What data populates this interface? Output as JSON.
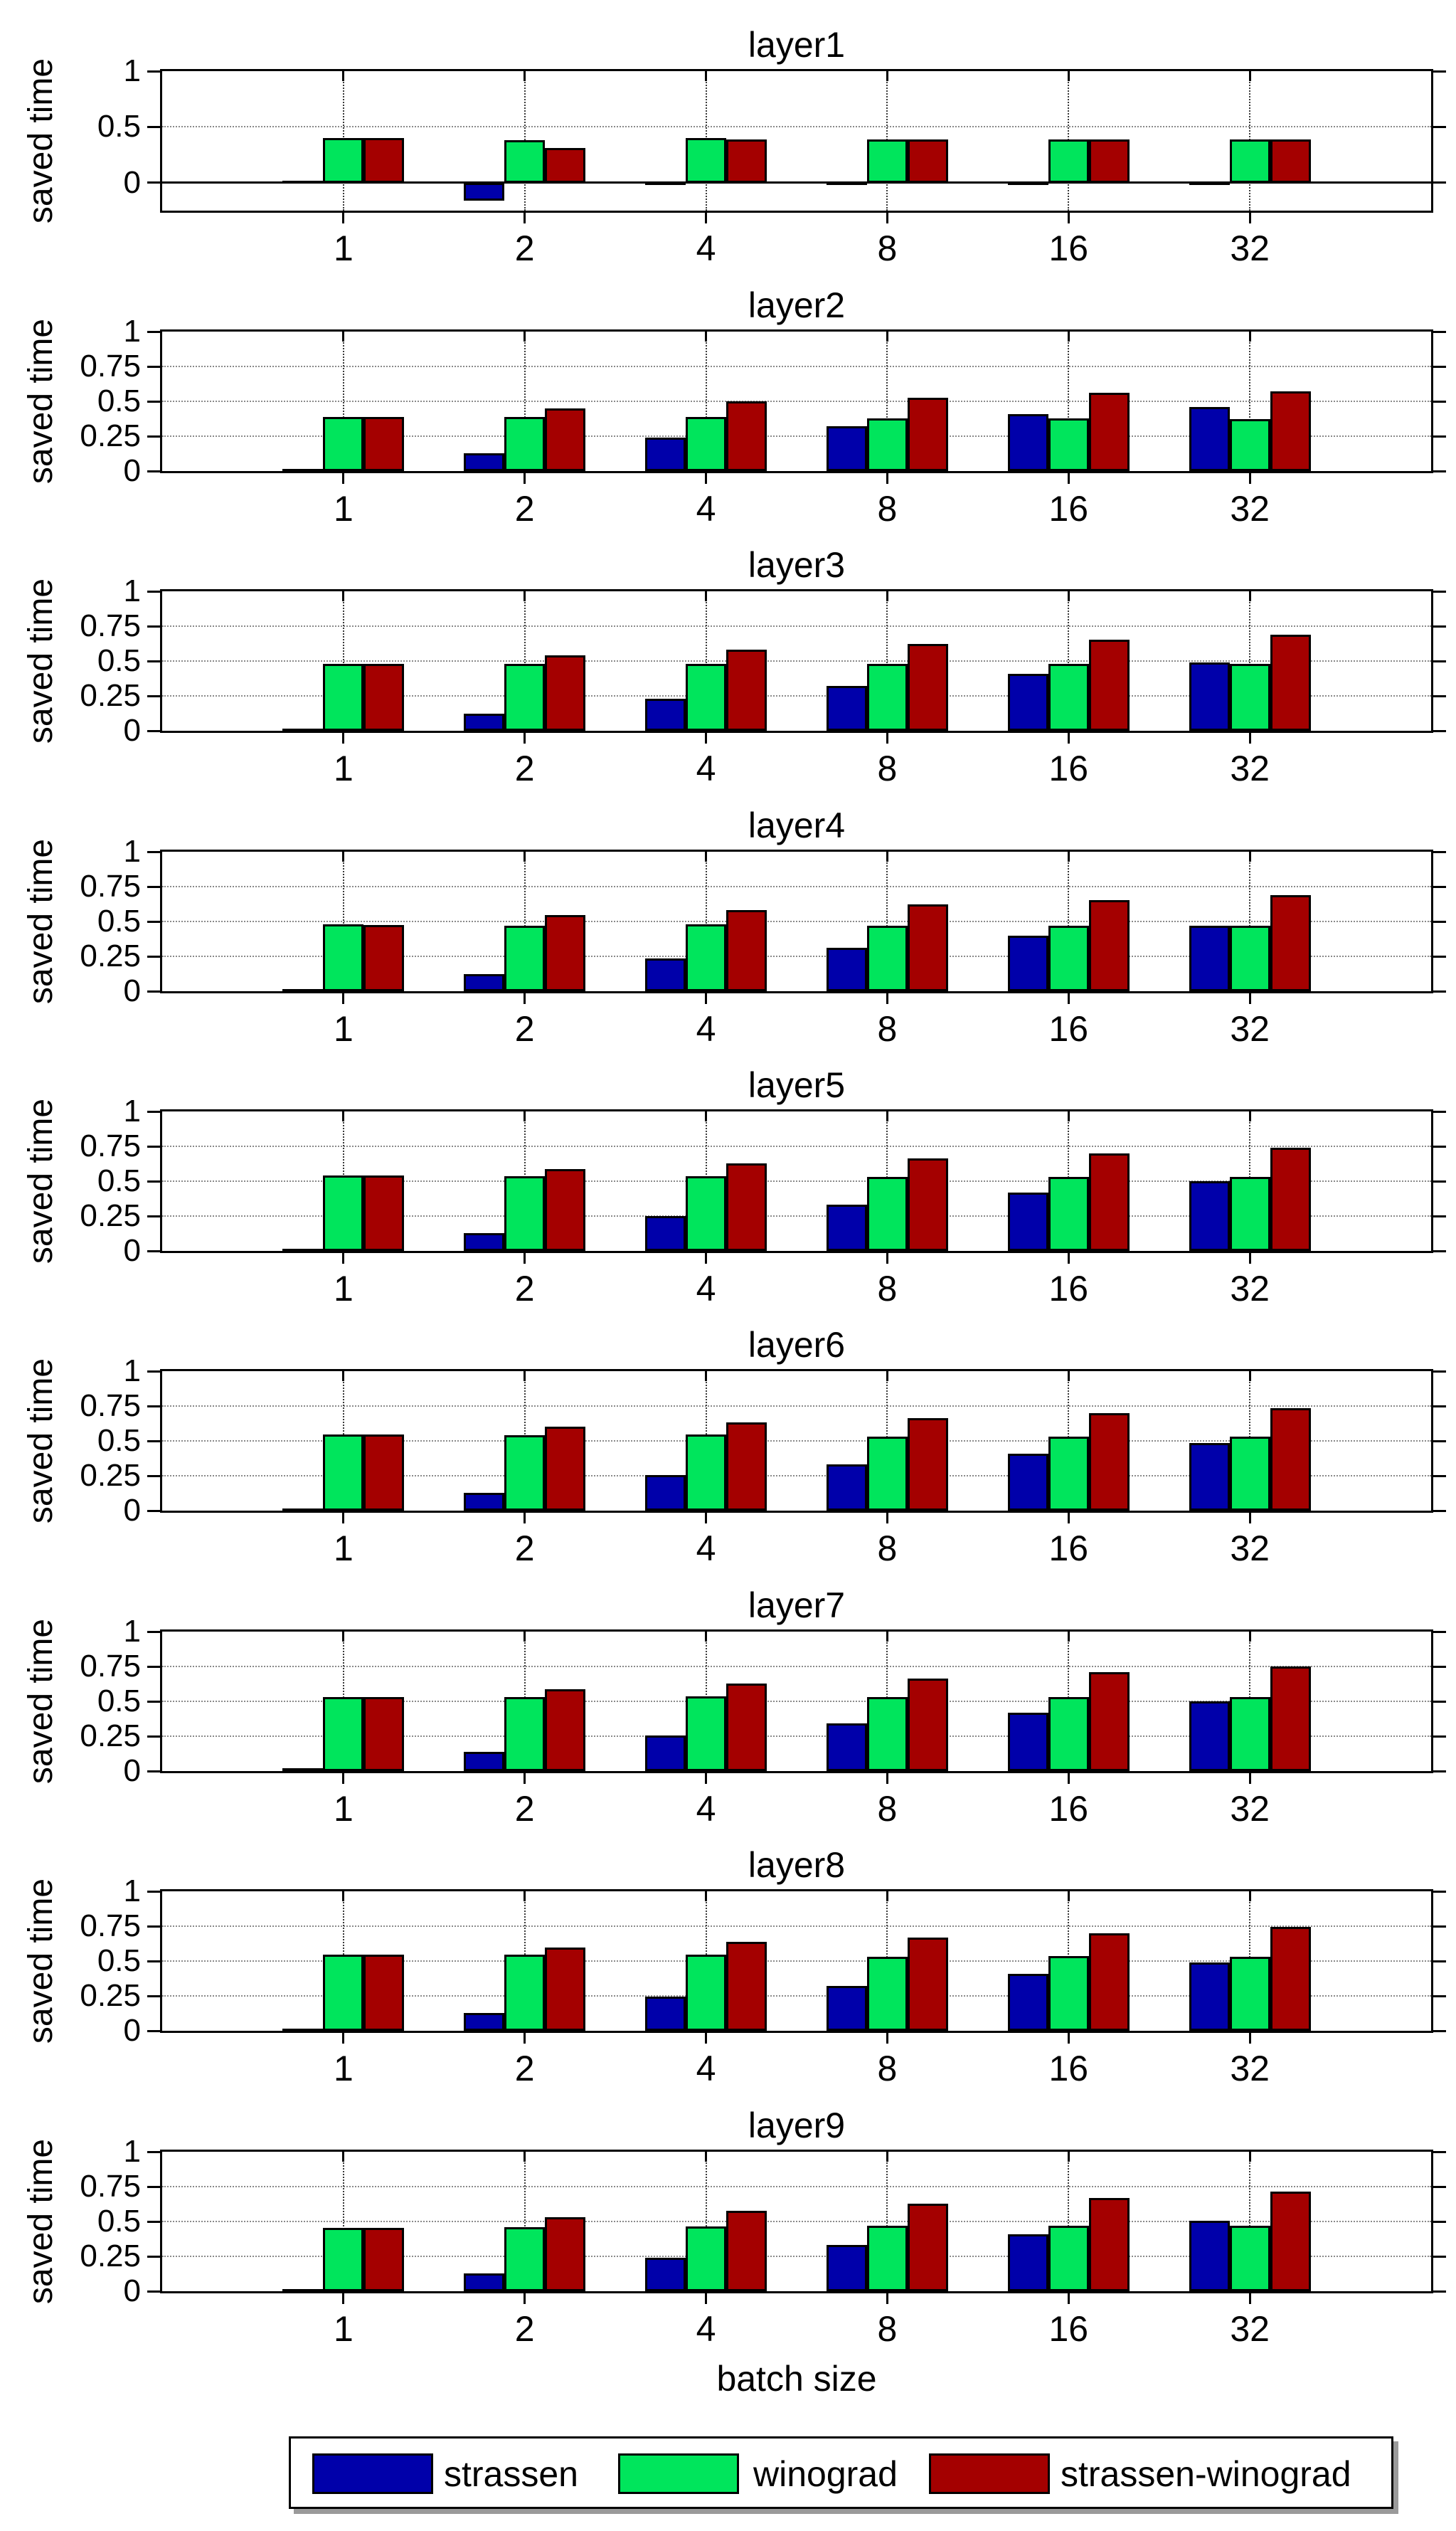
{
  "chart_data": {
    "type": "bar",
    "figure_kind": "matlab-style stacked subplots of grouped bars",
    "xlabel": "batch size",
    "ylabel": "saved time",
    "categories": [
      "1",
      "2",
      "4",
      "8",
      "16",
      "32"
    ],
    "legend": {
      "position": "bottom-center",
      "entries": [
        "strassen",
        "winograd",
        "strassen-winograd"
      ]
    },
    "series_colors": {
      "strassen": "#0000AA",
      "winograd": "#00E55C",
      "strassen-winograd": "#A40000"
    },
    "grid": true,
    "subplots": [
      {
        "title": "layer1",
        "ylim": [
          -0.25,
          1
        ],
        "ytick_labels": [
          "1",
          "0.5",
          "0"
        ],
        "grid_y": [
          0.5
        ],
        "zero_line": true,
        "series": [
          {
            "name": "strassen",
            "values": [
              0.01,
              -0.16,
              -0.02,
              -0.02,
              -0.02,
              -0.02
            ]
          },
          {
            "name": "winograd",
            "values": [
              0.4,
              0.38,
              0.4,
              0.39,
              0.39,
              0.39
            ]
          },
          {
            "name": "strassen-winograd",
            "values": [
              0.4,
              0.31,
              0.385,
              0.39,
              0.39,
              0.385
            ]
          }
        ]
      },
      {
        "title": "layer2",
        "ylim": [
          0,
          1
        ],
        "ytick_labels": [
          "1",
          "0.75",
          "0.5",
          "0.25",
          "0"
        ],
        "grid_y": [
          0.25,
          0.5,
          0.75
        ],
        "zero_line": false,
        "series": [
          {
            "name": "strassen",
            "values": [
              0.01,
              0.13,
              0.24,
              0.32,
              0.41,
              0.46
            ]
          },
          {
            "name": "winograd",
            "values": [
              0.39,
              0.39,
              0.39,
              0.38,
              0.38,
              0.37
            ]
          },
          {
            "name": "strassen-winograd",
            "values": [
              0.39,
              0.45,
              0.5,
              0.525,
              0.56,
              0.57
            ]
          }
        ]
      },
      {
        "title": "layer3",
        "ylim": [
          0,
          1
        ],
        "ytick_labels": [
          "1",
          "0.75",
          "0.5",
          "0.25",
          "0"
        ],
        "grid_y": [
          0.25,
          0.5,
          0.75
        ],
        "zero_line": false,
        "series": [
          {
            "name": "strassen",
            "values": [
              0.005,
              0.12,
              0.23,
              0.32,
              0.41,
              0.49
            ]
          },
          {
            "name": "winograd",
            "values": [
              0.48,
              0.48,
              0.48,
              0.48,
              0.48,
              0.48
            ]
          },
          {
            "name": "strassen-winograd",
            "values": [
              0.48,
              0.54,
              0.58,
              0.62,
              0.655,
              0.69
            ]
          }
        ]
      },
      {
        "title": "layer4",
        "ylim": [
          0,
          1
        ],
        "ytick_labels": [
          "1",
          "0.75",
          "0.5",
          "0.25",
          "0"
        ],
        "grid_y": [
          0.25,
          0.5,
          0.75
        ],
        "zero_line": false,
        "series": [
          {
            "name": "strassen",
            "values": [
              0.005,
              0.12,
              0.235,
              0.31,
              0.4,
              0.47
            ]
          },
          {
            "name": "winograd",
            "values": [
              0.48,
              0.47,
              0.48,
              0.47,
              0.47,
              0.47
            ]
          },
          {
            "name": "strassen-winograd",
            "values": [
              0.475,
              0.545,
              0.58,
              0.62,
              0.655,
              0.69
            ]
          }
        ]
      },
      {
        "title": "layer5",
        "ylim": [
          0,
          1
        ],
        "ytick_labels": [
          "1",
          "0.75",
          "0.5",
          "0.25",
          "0"
        ],
        "grid_y": [
          0.25,
          0.5,
          0.75
        ],
        "zero_line": false,
        "series": [
          {
            "name": "strassen",
            "values": [
              0.01,
              0.13,
              0.25,
              0.33,
              0.42,
              0.5
            ]
          },
          {
            "name": "winograd",
            "values": [
              0.54,
              0.535,
              0.535,
              0.53,
              0.53,
              0.53
            ]
          },
          {
            "name": "strassen-winograd",
            "values": [
              0.54,
              0.585,
              0.63,
              0.665,
              0.7,
              0.74
            ]
          }
        ]
      },
      {
        "title": "layer6",
        "ylim": [
          0,
          1
        ],
        "ytick_labels": [
          "1",
          "0.75",
          "0.5",
          "0.25",
          "0"
        ],
        "grid_y": [
          0.25,
          0.5,
          0.75
        ],
        "zero_line": false,
        "series": [
          {
            "name": "strassen",
            "values": [
              0.01,
              0.13,
              0.255,
              0.33,
              0.41,
              0.485
            ]
          },
          {
            "name": "winograd",
            "values": [
              0.545,
              0.54,
              0.545,
              0.53,
              0.53,
              0.53
            ]
          },
          {
            "name": "strassen-winograd",
            "values": [
              0.545,
              0.6,
              0.635,
              0.665,
              0.7,
              0.735
            ]
          }
        ]
      },
      {
        "title": "layer7",
        "ylim": [
          0,
          1
        ],
        "ytick_labels": [
          "1",
          "0.75",
          "0.5",
          "0.25",
          "0"
        ],
        "grid_y": [
          0.25,
          0.5,
          0.75
        ],
        "zero_line": false,
        "series": [
          {
            "name": "strassen",
            "values": [
              0.02,
              0.14,
              0.255,
              0.34,
              0.42,
              0.5
            ]
          },
          {
            "name": "winograd",
            "values": [
              0.53,
              0.53,
              0.535,
              0.53,
              0.53,
              0.53
            ]
          },
          {
            "name": "strassen-winograd",
            "values": [
              0.53,
              0.585,
              0.63,
              0.665,
              0.71,
              0.75
            ]
          }
        ]
      },
      {
        "title": "layer8",
        "ylim": [
          0,
          1
        ],
        "ytick_labels": [
          "1",
          "0.75",
          "0.5",
          "0.25",
          "0"
        ],
        "grid_y": [
          0.25,
          0.5,
          0.75
        ],
        "zero_line": false,
        "series": [
          {
            "name": "strassen",
            "values": [
              0.01,
              0.13,
              0.245,
              0.32,
              0.41,
              0.49
            ]
          },
          {
            "name": "winograd",
            "values": [
              0.545,
              0.545,
              0.545,
              0.53,
              0.535,
              0.53
            ]
          },
          {
            "name": "strassen-winograd",
            "values": [
              0.545,
              0.595,
              0.64,
              0.67,
              0.7,
              0.745
            ]
          }
        ]
      },
      {
        "title": "layer9",
        "ylim": [
          0,
          1
        ],
        "ytick_labels": [
          "1",
          "0.75",
          "0.5",
          "0.25",
          "0"
        ],
        "grid_y": [
          0.25,
          0.5,
          0.75
        ],
        "zero_line": false,
        "series": [
          {
            "name": "strassen",
            "values": [
              0.005,
              0.13,
              0.24,
              0.33,
              0.41,
              0.505
            ]
          },
          {
            "name": "winograd",
            "values": [
              0.455,
              0.46,
              0.465,
              0.47,
              0.47,
              0.47
            ]
          },
          {
            "name": "strassen-winograd",
            "values": [
              0.455,
              0.53,
              0.575,
              0.63,
              0.67,
              0.715
            ]
          }
        ]
      }
    ]
  }
}
